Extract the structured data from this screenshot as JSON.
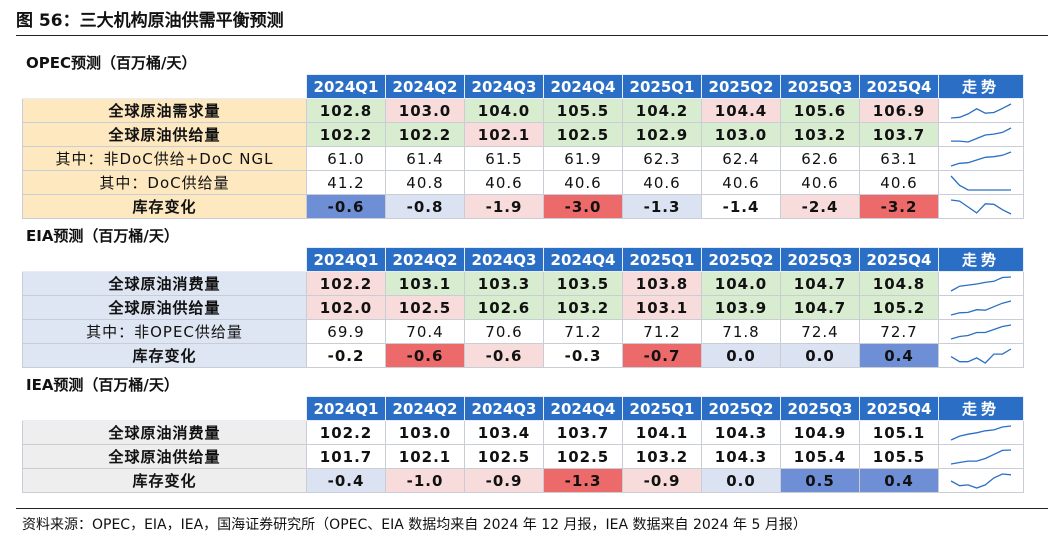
{
  "figure_title": "图 56：三大机构原油供需平衡预测",
  "quarters": [
    "2024Q1",
    "2024Q2",
    "2024Q3",
    "2024Q4",
    "2025Q1",
    "2025Q2",
    "2025Q3",
    "2025Q4"
  ],
  "trend_label": "走势",
  "colors": {
    "header_blue": "#2a6fc5",
    "label_bg_opec": "#fde8c0",
    "label_bg_eia": "#dfe6f3",
    "label_bg_iea": "#eeeeee",
    "green": "#d8ecd0",
    "light_red": "#f8dcdc",
    "red": "#ec6a6a",
    "light_blue": "#dbe3f3",
    "blue": "#6e8ed6",
    "white": "#ffffff",
    "sparkline": "#2a6fc5"
  },
  "sections": [
    {
      "title": "OPEC预测（百万桶/天）",
      "label_bg": "#fde8c0",
      "rows": [
        {
          "label": "全球原油需求量",
          "bold": true,
          "values": [
            "102.8",
            "103.0",
            "104.0",
            "105.5",
            "104.2",
            "104.4",
            "105.6",
            "106.9"
          ],
          "bgs": [
            "green",
            "light_red",
            "green",
            "green",
            "green",
            "light_red",
            "green",
            "light_red"
          ]
        },
        {
          "label": "全球原油供给量",
          "bold": true,
          "values": [
            "102.2",
            "102.2",
            "102.1",
            "102.5",
            "102.9",
            "103.0",
            "103.2",
            "103.7"
          ],
          "bgs": [
            "green",
            "green",
            "light_red",
            "green",
            "green",
            "green",
            "green",
            "green"
          ]
        },
        {
          "label": "其中：非DoC供给+DoC NGL",
          "bold": false,
          "values": [
            "61.0",
            "61.4",
            "61.5",
            "61.9",
            "62.3",
            "62.4",
            "62.6",
            "63.1"
          ],
          "bgs": [
            "white",
            "white",
            "white",
            "white",
            "white",
            "white",
            "white",
            "white"
          ]
        },
        {
          "label": "其中：DoC供给量",
          "bold": false,
          "values": [
            "41.2",
            "40.8",
            "40.6",
            "40.6",
            "40.6",
            "40.6",
            "40.6",
            "40.6"
          ],
          "bgs": [
            "white",
            "white",
            "white",
            "white",
            "white",
            "white",
            "white",
            "white"
          ]
        },
        {
          "label": "库存变化",
          "bold": true,
          "values": [
            "-0.6",
            "-0.8",
            "-1.9",
            "-3.0",
            "-1.3",
            "-1.4",
            "-2.4",
            "-3.2"
          ],
          "bgs": [
            "blue",
            "light_blue",
            "light_red",
            "red",
            "light_blue",
            "white",
            "light_red",
            "red"
          ]
        }
      ]
    },
    {
      "title": "EIA预测（百万桶/天）",
      "label_bg": "#dfe6f3",
      "rows": [
        {
          "label": "全球原油消费量",
          "bold": true,
          "values": [
            "102.2",
            "103.1",
            "103.3",
            "103.5",
            "103.8",
            "104.0",
            "104.7",
            "104.8"
          ],
          "bgs": [
            "light_red",
            "green",
            "green",
            "green",
            "light_red",
            "green",
            "green",
            "green"
          ]
        },
        {
          "label": "全球原油供给量",
          "bold": true,
          "values": [
            "102.0",
            "102.5",
            "102.6",
            "103.2",
            "103.1",
            "103.9",
            "104.7",
            "105.2"
          ],
          "bgs": [
            "light_red",
            "light_red",
            "green",
            "green",
            "light_red",
            "green",
            "green",
            "green"
          ]
        },
        {
          "label": "其中：非OPEC供给量",
          "bold": false,
          "values": [
            "69.9",
            "70.4",
            "70.6",
            "71.2",
            "71.2",
            "71.8",
            "72.4",
            "72.7"
          ],
          "bgs": [
            "white",
            "white",
            "white",
            "white",
            "white",
            "white",
            "white",
            "white"
          ]
        },
        {
          "label": "库存变化",
          "bold": true,
          "values": [
            "-0.2",
            "-0.6",
            "-0.6",
            "-0.3",
            "-0.7",
            "0.0",
            "0.0",
            "0.4"
          ],
          "bgs": [
            "white",
            "red",
            "light_red",
            "white",
            "red",
            "light_blue",
            "light_blue",
            "blue"
          ]
        }
      ]
    },
    {
      "title": "IEA预测（百万桶/天）",
      "label_bg": "#eeeeee",
      "rows": [
        {
          "label": "全球原油消费量",
          "bold": true,
          "values": [
            "102.2",
            "103.0",
            "103.4",
            "103.7",
            "104.1",
            "104.3",
            "104.9",
            "105.1"
          ],
          "bgs": [
            "white",
            "white",
            "white",
            "white",
            "white",
            "white",
            "white",
            "white"
          ]
        },
        {
          "label": "全球原油供给量",
          "bold": true,
          "values": [
            "101.7",
            "102.1",
            "102.5",
            "102.5",
            "103.2",
            "104.3",
            "105.4",
            "105.5"
          ],
          "bgs": [
            "white",
            "white",
            "white",
            "white",
            "white",
            "white",
            "white",
            "white"
          ]
        },
        {
          "label": "库存变化",
          "bold": true,
          "values": [
            "-0.4",
            "-1.0",
            "-0.9",
            "-1.3",
            "-0.9",
            "0.0",
            "0.5",
            "0.4"
          ],
          "bgs": [
            "light_blue",
            "light_red",
            "light_red",
            "red",
            "light_red",
            "light_blue",
            "blue",
            "blue"
          ]
        }
      ]
    }
  ],
  "note": "资料来源：OPEC，EIA，IEA，国海证券研究所（OPEC、EIA 数据均来自 2024 年 12 月报，IEA 数据来自 2024 年 5 月报）"
}
